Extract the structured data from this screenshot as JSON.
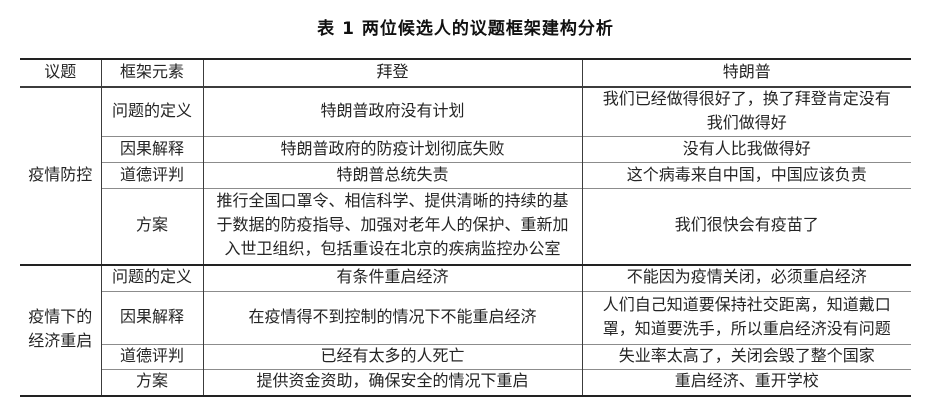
{
  "title": "表 1 两位候选人的议题框架建构分析",
  "table": {
    "headers": [
      "议题",
      "框架元素",
      "拜登",
      "特朗普"
    ],
    "sections": [
      {
        "topic": "疫情防控",
        "rows": [
          {
            "element": "问题的定义",
            "biden": "特朗普政府没有计划",
            "trump": "我们已经做得很好了，换了拜登肯定没有\n我们做得好"
          },
          {
            "element": "因果解释",
            "biden": "特朗普政府的防疫计划彻底失败",
            "trump": "没有人比我做得好"
          },
          {
            "element": "道德评判",
            "biden": "特朗普总统失责",
            "trump": "这个病毒来自中国，中国应该负责"
          },
          {
            "element": "方案",
            "biden": "推行全国口罩令、相信科学、提供清晰的持续的基\n于数据的防疫指导、加强对老年人的保护、重新加\n入世卫组织，包括重设在北京的疾病监控办公室",
            "trump": "我们很快会有疫苗了"
          }
        ]
      },
      {
        "topic": "疫情下的\n经济重启",
        "rows": [
          {
            "element": "问题的定义",
            "biden": "有条件重启经济",
            "trump": "不能因为疫情关闭，必须重启经济"
          },
          {
            "element": "因果解释",
            "biden": "在疫情得不到控制的情况下不能重启经济",
            "trump": "人们自己知道要保持社交距离，知道戴口\n罩，知道要洗手，所以重启经济没有问题"
          },
          {
            "element": "道德评判",
            "biden": "已经有太多的人死亡",
            "trump": "失业率太高了，关闭会毁了整个国家"
          },
          {
            "element": "方案",
            "biden": "提供资金资助，确保安全的情况下重启",
            "trump": "重启经济、重开学校"
          }
        ]
      }
    ]
  }
}
